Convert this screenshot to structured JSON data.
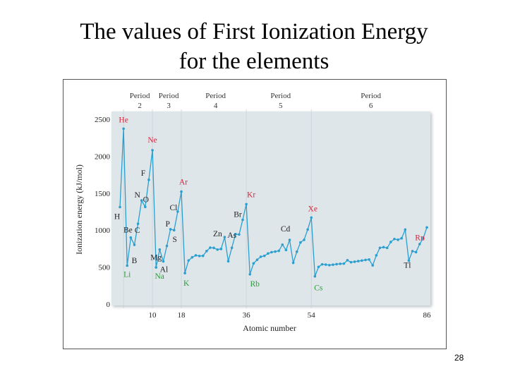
{
  "slide": {
    "title_line1": "The values of First Ionization Energy",
    "title_line2": "for the elements",
    "page_number": "28"
  },
  "colors": {
    "plot_bg": "#dfe6ea",
    "line": "#2a9fd0",
    "label_red": "#d8243c",
    "label_green": "#2e9a3c",
    "label_dark": "#222222",
    "period_text": "#333333"
  },
  "chart_data": {
    "type": "line",
    "title": "",
    "xlabel": "Atomic number",
    "ylabel": "Ionization energy (kJ/mol)",
    "xlim": [
      1,
      86
    ],
    "ylim": [
      0,
      2500
    ],
    "yticks": [
      0,
      500,
      1000,
      1500,
      2000,
      2500
    ],
    "xticks": [
      10,
      18,
      36,
      54,
      86
    ],
    "grid": false,
    "series": [
      {
        "name": "First ionization energy",
        "x": [
          1,
          2,
          3,
          4,
          5,
          6,
          7,
          8,
          9,
          10,
          11,
          12,
          13,
          14,
          15,
          16,
          17,
          18,
          19,
          20,
          21,
          22,
          23,
          24,
          25,
          26,
          27,
          28,
          29,
          30,
          31,
          32,
          33,
          34,
          35,
          36,
          37,
          38,
          39,
          40,
          41,
          42,
          43,
          44,
          45,
          46,
          47,
          48,
          49,
          50,
          51,
          52,
          53,
          54,
          55,
          56,
          57,
          58,
          59,
          60,
          61,
          62,
          63,
          64,
          65,
          66,
          67,
          68,
          69,
          70,
          71,
          72,
          73,
          74,
          75,
          76,
          77,
          78,
          79,
          80,
          81,
          82,
          83,
          84,
          85,
          86
        ],
        "values": [
          1312,
          2372,
          520,
          900,
          801,
          1086,
          1402,
          1314,
          1681,
          2081,
          496,
          738,
          578,
          787,
          1012,
          1000,
          1251,
          1521,
          419,
          590,
          633,
          659,
          651,
          653,
          717,
          763,
          760,
          737,
          746,
          906,
          579,
          762,
          947,
          941,
          1140,
          1351,
          403,
          550,
          600,
          640,
          652,
          684,
          702,
          710,
          720,
          804,
          731,
          868,
          558,
          709,
          834,
          869,
          1008,
          1170,
          376,
          503,
          538,
          534,
          527,
          533,
          540,
          545,
          547,
          593,
          566,
          573,
          581,
          589,
          597,
          603,
          524,
          659,
          761,
          770,
          760,
          840,
          880,
          870,
          890,
          1007,
          589,
          716,
          703,
          812,
          890,
          1037
        ]
      }
    ],
    "period_labels": [
      {
        "line1": "Period",
        "line2": "2"
      },
      {
        "line1": "Period",
        "line2": "3"
      },
      {
        "line1": "Period",
        "line2": "4"
      },
      {
        "line1": "Period",
        "line2": "5"
      },
      {
        "line1": "Period",
        "line2": "6"
      }
    ],
    "element_labels": [
      {
        "symbol": "He",
        "z": 2,
        "color": "red"
      },
      {
        "symbol": "Ne",
        "z": 10,
        "color": "red"
      },
      {
        "symbol": "Ar",
        "z": 18,
        "color": "red"
      },
      {
        "symbol": "Kr",
        "z": 36,
        "color": "red"
      },
      {
        "symbol": "Xe",
        "z": 54,
        "color": "red"
      },
      {
        "symbol": "Rn",
        "z": 86,
        "color": "red"
      },
      {
        "symbol": "Li",
        "z": 3,
        "color": "green"
      },
      {
        "symbol": "Na",
        "z": 11,
        "color": "green"
      },
      {
        "symbol": "K",
        "z": 19,
        "color": "green"
      },
      {
        "symbol": "Rb",
        "z": 37,
        "color": "green"
      },
      {
        "symbol": "Cs",
        "z": 55,
        "color": "green"
      },
      {
        "symbol": "H",
        "z": 1,
        "color": "dark"
      },
      {
        "symbol": "F",
        "z": 9,
        "color": "dark"
      },
      {
        "symbol": "N",
        "z": 7,
        "color": "dark"
      },
      {
        "symbol": "O",
        "z": 8,
        "color": "dark"
      },
      {
        "symbol": "C",
        "z": 6,
        "color": "dark"
      },
      {
        "symbol": "Be",
        "z": 4,
        "color": "dark"
      },
      {
        "symbol": "B",
        "z": 5,
        "color": "dark"
      },
      {
        "symbol": "Mg",
        "z": 12,
        "color": "dark"
      },
      {
        "symbol": "Al",
        "z": 13,
        "color": "dark"
      },
      {
        "symbol": "Cl",
        "z": 17,
        "color": "dark"
      },
      {
        "symbol": "P",
        "z": 15,
        "color": "dark"
      },
      {
        "symbol": "S",
        "z": 16,
        "color": "dark"
      },
      {
        "symbol": "Br",
        "z": 35,
        "color": "dark"
      },
      {
        "symbol": "As",
        "z": 33,
        "color": "dark"
      },
      {
        "symbol": "Zn",
        "z": 30,
        "color": "dark"
      },
      {
        "symbol": "Cd",
        "z": 48,
        "color": "dark"
      },
      {
        "symbol": "Tl",
        "z": 81,
        "color": "dark"
      }
    ]
  }
}
